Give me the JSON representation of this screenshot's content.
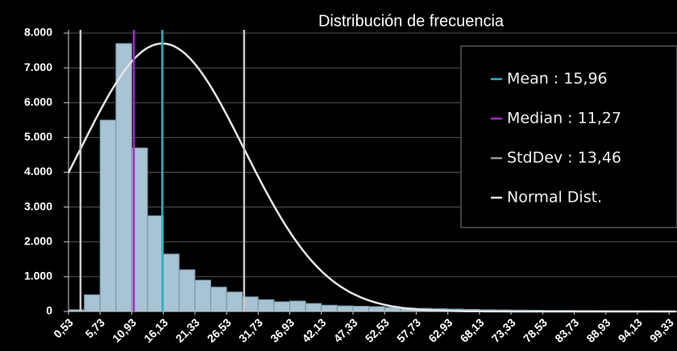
{
  "chart_data": {
    "type": "histogram",
    "title": "Distribución de frecuencia",
    "bins": [
      0.53,
      3.13,
      5.73,
      8.33,
      10.93,
      13.53,
      16.13,
      18.73,
      21.33,
      23.93,
      26.53,
      29.13,
      31.73,
      34.33,
      36.93,
      39.53,
      42.13,
      44.73,
      47.33,
      49.93,
      52.53,
      55.13,
      57.73,
      60.33,
      62.93,
      65.53,
      68.13,
      70.73,
      73.33,
      75.93,
      78.53,
      81.13,
      83.73,
      86.33,
      88.93,
      91.53,
      94.13,
      96.73,
      99.33
    ],
    "counts": [
      50,
      480,
      5500,
      7700,
      4700,
      2750,
      1650,
      1200,
      900,
      700,
      560,
      420,
      340,
      280,
      300,
      230,
      180,
      160,
      150,
      140,
      120,
      100,
      90,
      80,
      70,
      60,
      50,
      45,
      40,
      35,
      30,
      30,
      25,
      25,
      20,
      20,
      15,
      15
    ],
    "color": "#a8c3d3",
    "xlim": [
      0.53,
      100.63
    ],
    "ylim": [
      0,
      8000
    ],
    "yticks": [
      0,
      {
        "value": 1000,
        "label": "1.000"
      },
      {
        "value": 2000,
        "label": "2.000"
      },
      {
        "value": 3000,
        "label": "3.000"
      },
      {
        "value": 4000,
        "label": "4.000"
      },
      {
        "value": 5000,
        "label": "5.000"
      },
      {
        "value": 6000,
        "label": "6.000"
      },
      {
        "value": 7000,
        "label": "7.000"
      },
      {
        "value": 8000,
        "label": "8.000"
      }
    ],
    "xticks": [
      {
        "value": 0.53,
        "label": "0,53"
      },
      {
        "value": 5.73,
        "label": "5,73"
      },
      {
        "value": 10.93,
        "label": "10,93"
      },
      {
        "value": 16.13,
        "label": "16,13"
      },
      {
        "value": 21.33,
        "label": "21,33"
      },
      {
        "value": 26.53,
        "label": "26,53"
      },
      {
        "value": 31.73,
        "label": "31,73"
      },
      {
        "value": 36.93,
        "label": "36,93"
      },
      {
        "value": 42.13,
        "label": "42,13"
      },
      {
        "value": 47.33,
        "label": "47,33"
      },
      {
        "value": 52.53,
        "label": "52,53"
      },
      {
        "value": 57.73,
        "label": "57,73"
      },
      {
        "value": 62.93,
        "label": "62,93"
      },
      {
        "value": 68.13,
        "label": "68,13"
      },
      {
        "value": 73.33,
        "label": "73,33"
      },
      {
        "value": 78.53,
        "label": "78,53"
      },
      {
        "value": 83.73,
        "label": "83,73"
      },
      {
        "value": 88.93,
        "label": "88,93"
      },
      {
        "value": 94.13,
        "label": "94,13"
      },
      {
        "value": 99.33,
        "label": "99,33"
      }
    ],
    "grid": true,
    "legend": [
      {
        "label": "Mean : 15,96",
        "value": 15.96,
        "color": "#1fb8d0"
      },
      {
        "label": "Median : 11,27",
        "value": 11.27,
        "color": "#b020d8"
      },
      {
        "label": "StdDev : 13,46",
        "value": 13.46,
        "color": "#9a9a9a"
      },
      {
        "label": "Normal Dist.",
        "color": "#e6e6e6"
      }
    ]
  }
}
